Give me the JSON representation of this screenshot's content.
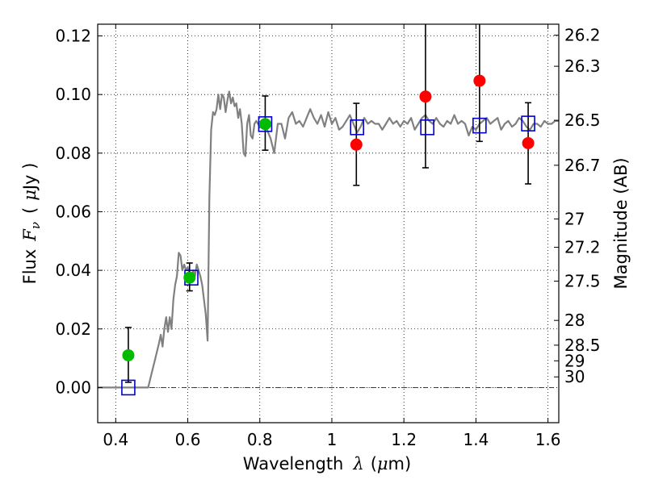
{
  "chart_data": {
    "type": "scatter",
    "xlabel": "Wavelength",
    "xlabel_symbol": "λ",
    "xlabel_unit_open": "(",
    "xlabel_unit_mu": "μ",
    "xlabel_unit_rest": "m)",
    "ylabel": "Flux",
    "ylabel_symbol": "F",
    "ylabel_subscript": "ν",
    "ylabel_unit_open": "(",
    "ylabel_unit_mu": "μ",
    "ylabel_unit_rest": "Jy )",
    "y2label": "Magnitude (AB)",
    "xlim": [
      0.35,
      1.63
    ],
    "ylim": [
      -0.012,
      0.124
    ],
    "grid": true,
    "x_ticks": [
      {
        "value": 0.4,
        "label": "0.4"
      },
      {
        "value": 0.6,
        "label": "0.6"
      },
      {
        "value": 0.8,
        "label": "0.8"
      },
      {
        "value": 1.0,
        "label": "1"
      },
      {
        "value": 1.2,
        "label": "1.2"
      },
      {
        "value": 1.4,
        "label": "1.4"
      },
      {
        "value": 1.6,
        "label": "1.6"
      }
    ],
    "y_ticks": [
      {
        "value": 0.0,
        "label": "0.00"
      },
      {
        "value": 0.02,
        "label": "0.02"
      },
      {
        "value": 0.04,
        "label": "0.04"
      },
      {
        "value": 0.06,
        "label": "0.06"
      },
      {
        "value": 0.08,
        "label": "0.08"
      },
      {
        "value": 0.1,
        "label": "0.10"
      },
      {
        "value": 0.12,
        "label": "0.12"
      }
    ],
    "magnitude_ticks": [
      {
        "mag": 26.2,
        "label": "26.2"
      },
      {
        "mag": 26.3,
        "label": "26.3"
      },
      {
        "mag": 26.5,
        "label": "26.5"
      },
      {
        "mag": 26.7,
        "label": "26.7"
      },
      {
        "mag": 27,
        "label": "27"
      },
      {
        "mag": 27.2,
        "label": "27.2"
      },
      {
        "mag": 27.5,
        "label": "27.5"
      },
      {
        "mag": 28,
        "label": "28"
      },
      {
        "mag": 28.5,
        "label": "28.5"
      },
      {
        "mag": 29,
        "label": "29"
      },
      {
        "mag": 30,
        "label": "30"
      }
    ],
    "model_spectrum": {
      "color": "#808080",
      "x": [
        0.35,
        0.49,
        0.5,
        0.51,
        0.52,
        0.525,
        0.53,
        0.535,
        0.54,
        0.545,
        0.55,
        0.555,
        0.56,
        0.565,
        0.57,
        0.575,
        0.58,
        0.585,
        0.59,
        0.595,
        0.6,
        0.605,
        0.61,
        0.615,
        0.62,
        0.625,
        0.63,
        0.635,
        0.64,
        0.645,
        0.65,
        0.655,
        0.66,
        0.665,
        0.67,
        0.675,
        0.68,
        0.685,
        0.69,
        0.695,
        0.7,
        0.705,
        0.71,
        0.715,
        0.72,
        0.725,
        0.73,
        0.735,
        0.74,
        0.745,
        0.75,
        0.755,
        0.76,
        0.765,
        0.77,
        0.775,
        0.78,
        0.785,
        0.79,
        0.8,
        0.81,
        0.82,
        0.83,
        0.84,
        0.85,
        0.86,
        0.87,
        0.88,
        0.89,
        0.9,
        0.91,
        0.92,
        0.93,
        0.94,
        0.95,
        0.96,
        0.97,
        0.98,
        0.99,
        1.0,
        1.01,
        1.02,
        1.03,
        1.04,
        1.05,
        1.06,
        1.07,
        1.08,
        1.09,
        1.1,
        1.11,
        1.12,
        1.13,
        1.14,
        1.15,
        1.16,
        1.17,
        1.18,
        1.19,
        1.2,
        1.21,
        1.22,
        1.23,
        1.24,
        1.25,
        1.26,
        1.27,
        1.28,
        1.29,
        1.3,
        1.31,
        1.32,
        1.33,
        1.34,
        1.35,
        1.36,
        1.37,
        1.38,
        1.39,
        1.4,
        1.41,
        1.42,
        1.43,
        1.44,
        1.45,
        1.46,
        1.47,
        1.48,
        1.49,
        1.5,
        1.51,
        1.52,
        1.53,
        1.54,
        1.55,
        1.56,
        1.57,
        1.58,
        1.59,
        1.6,
        1.61,
        1.62,
        1.63
      ],
      "y": [
        0.0,
        0.0,
        0.005,
        0.01,
        0.015,
        0.018,
        0.014,
        0.02,
        0.024,
        0.019,
        0.024,
        0.02,
        0.03,
        0.035,
        0.038,
        0.046,
        0.045,
        0.04,
        0.042,
        0.04,
        0.041,
        0.039,
        0.037,
        0.04,
        0.038,
        0.042,
        0.04,
        0.038,
        0.035,
        0.03,
        0.025,
        0.016,
        0.065,
        0.088,
        0.094,
        0.093,
        0.095,
        0.1,
        0.095,
        0.1,
        0.099,
        0.094,
        0.098,
        0.101,
        0.097,
        0.099,
        0.096,
        0.097,
        0.092,
        0.095,
        0.09,
        0.08,
        0.079,
        0.09,
        0.093,
        0.086,
        0.085,
        0.09,
        0.091,
        0.089,
        0.09,
        0.088,
        0.085,
        0.08,
        0.09,
        0.09,
        0.085,
        0.092,
        0.094,
        0.09,
        0.091,
        0.089,
        0.092,
        0.095,
        0.092,
        0.09,
        0.093,
        0.089,
        0.094,
        0.09,
        0.092,
        0.088,
        0.089,
        0.091,
        0.093,
        0.09,
        0.087,
        0.089,
        0.092,
        0.09,
        0.091,
        0.09,
        0.09,
        0.088,
        0.09,
        0.092,
        0.09,
        0.091,
        0.089,
        0.091,
        0.09,
        0.092,
        0.088,
        0.09,
        0.092,
        0.093,
        0.091,
        0.09,
        0.092,
        0.09,
        0.089,
        0.091,
        0.09,
        0.093,
        0.09,
        0.091,
        0.09,
        0.086,
        0.089,
        0.088,
        0.09,
        0.091,
        0.092,
        0.09,
        0.091,
        0.092,
        0.088,
        0.09,
        0.091,
        0.089,
        0.09,
        0.092,
        0.091,
        0.089,
        0.088,
        0.09,
        0.09,
        0.089,
        0.091,
        0.09,
        0.09,
        0.091,
        0.091
      ]
    },
    "measurements": [
      {
        "name": "green",
        "color": "#00bb00",
        "points": [
          {
            "x": 0.435,
            "y": 0.011,
            "err_low": 0.0018,
            "err_high": 0.0205
          },
          {
            "x": 0.605,
            "y": 0.0375,
            "err_low": 0.033,
            "err_high": 0.0425
          },
          {
            "x": 0.815,
            "y": 0.0899,
            "err_low": 0.081,
            "err_high": 0.0995
          }
        ]
      },
      {
        "name": "red",
        "color": "#ff0000",
        "points": [
          {
            "x": 1.068,
            "y": 0.0829,
            "err_low": 0.069,
            "err_high": 0.097
          },
          {
            "x": 1.26,
            "y": 0.0993,
            "err_low": 0.075,
            "err_high": 0.124
          },
          {
            "x": 1.41,
            "y": 0.1047,
            "err_low": 0.084,
            "err_high": 0.124
          },
          {
            "x": 1.545,
            "y": 0.0834,
            "err_low": 0.0695,
            "err_high": 0.0972
          }
        ]
      }
    ],
    "model_bandpass": {
      "name": "blue squares",
      "color": "#0000cc",
      "points": [
        {
          "x": 0.435,
          "y": 0.0
        },
        {
          "x": 0.61,
          "y": 0.0375
        },
        {
          "x": 0.815,
          "y": 0.0899
        },
        {
          "x": 1.07,
          "y": 0.0888
        },
        {
          "x": 1.265,
          "y": 0.0888
        },
        {
          "x": 1.41,
          "y": 0.0894
        },
        {
          "x": 1.545,
          "y": 0.0901
        }
      ]
    }
  }
}
